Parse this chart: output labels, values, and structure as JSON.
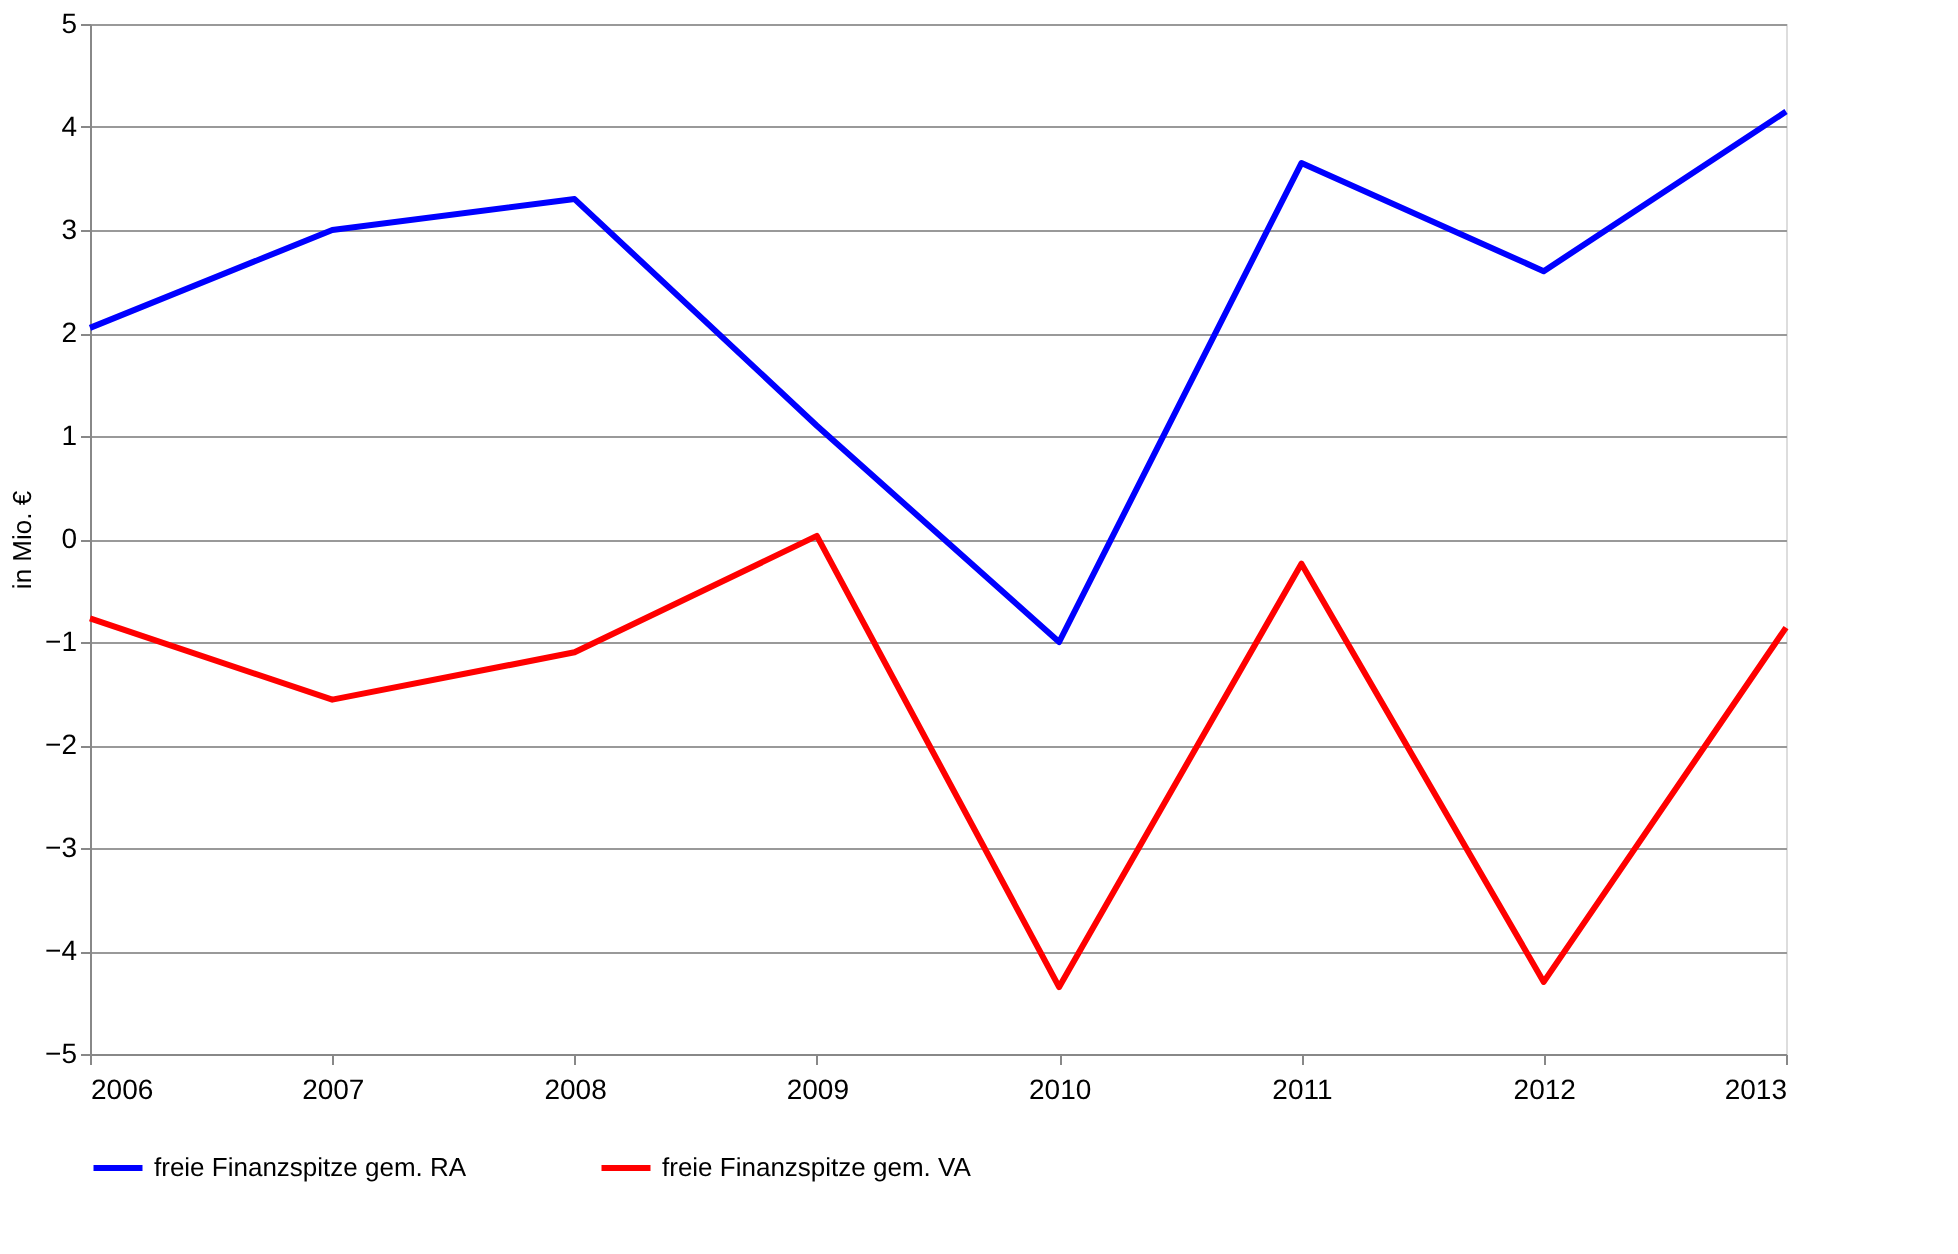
{
  "chart_data": {
    "type": "line",
    "ylabel": "in Mio. €",
    "x": [
      2006,
      2007,
      2008,
      2009,
      2010,
      2011,
      2012,
      2013
    ],
    "xlim": [
      2006,
      2013
    ],
    "xticks": [
      2006,
      2007,
      2008,
      2009,
      2010,
      2011,
      2012,
      2013
    ],
    "ylim": [
      -5,
      5
    ],
    "yticks": [
      -5,
      -4,
      -3,
      -2,
      -1,
      0,
      1,
      2,
      3,
      4,
      5
    ],
    "grid": "y",
    "legend": "bottom",
    "marker": "none",
    "line_style": "solid",
    "series": [
      {
        "name": "freie Finanzspitze gem. RA",
        "color": "#0000ff",
        "values": [
          2.05,
          3.0,
          3.3,
          1.1,
          -1.0,
          3.65,
          2.6,
          4.15
        ]
      },
      {
        "name": "freie Finanzspitze gem. VA",
        "color": "#ff0000",
        "values": [
          -0.77,
          -1.56,
          -1.1,
          0.03,
          -4.35,
          -0.24,
          -4.3,
          -0.86
        ]
      }
    ]
  }
}
